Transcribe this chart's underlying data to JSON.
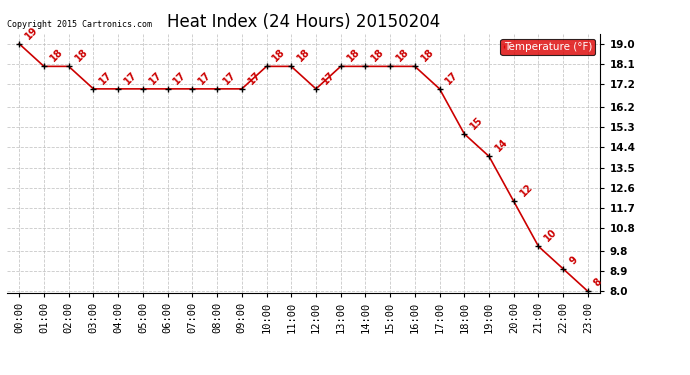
{
  "title": "Heat Index (24 Hours) 20150204",
  "copyright": "Copyright 2015 Cartronics.com",
  "legend_label": "Temperature (°F)",
  "x_labels": [
    "00:00",
    "01:00",
    "02:00",
    "03:00",
    "04:00",
    "05:00",
    "06:00",
    "07:00",
    "08:00",
    "09:00",
    "10:00",
    "11:00",
    "12:00",
    "13:00",
    "14:00",
    "15:00",
    "16:00",
    "17:00",
    "18:00",
    "19:00",
    "20:00",
    "21:00",
    "22:00",
    "23:00"
  ],
  "y_values": [
    19,
    18,
    18,
    17,
    17,
    17,
    17,
    17,
    17,
    17,
    18,
    18,
    17,
    18,
    18,
    18,
    18,
    17,
    15,
    14,
    12,
    10,
    9,
    8
  ],
  "y_labels": [
    "19.0",
    "18.1",
    "17.2",
    "16.2",
    "15.3",
    "14.4",
    "13.5",
    "12.6",
    "11.7",
    "10.8",
    "9.8",
    "8.9",
    "8.0"
  ],
  "y_tick_vals": [
    19.0,
    18.1,
    17.2,
    16.2,
    15.3,
    14.4,
    13.5,
    12.6,
    11.7,
    10.8,
    9.8,
    8.9,
    8.0
  ],
  "ylim_min": 7.95,
  "ylim_max": 19.45,
  "line_color": "#cc0000",
  "marker_color": "#000000",
  "grid_color": "#bbbbbb",
  "bg_color": "#ffffff",
  "title_fontsize": 12,
  "annot_fontsize": 7,
  "tick_fontsize": 7.5,
  "legend_bg": "#dd0000",
  "legend_text_color": "#ffffff"
}
